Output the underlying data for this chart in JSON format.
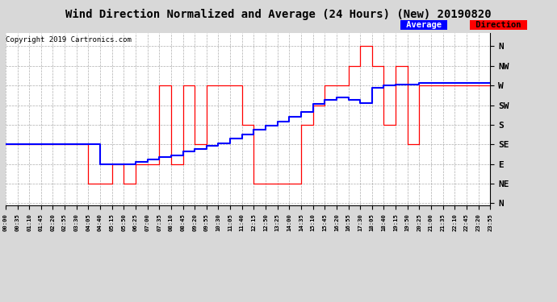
{
  "title": "Wind Direction Normalized and Average (24 Hours) (New) 20190820",
  "copyright": "Copyright 2019 Cartronics.com",
  "legend_label_avg": "Average",
  "legend_label_dir": "Direction",
  "y_labels": [
    "N",
    "NW",
    "W",
    "SW",
    "S",
    "SE",
    "E",
    "NE",
    "N"
  ],
  "y_ticks": [
    360,
    315,
    270,
    225,
    180,
    135,
    90,
    45,
    0
  ],
  "ylim": [
    -5,
    390
  ],
  "background_color": "#d8d8d8",
  "plot_bg_color": "#ffffff",
  "grid_color": "#999999",
  "title_fontsize": 10,
  "time_labels": [
    "00:00",
    "00:35",
    "01:10",
    "01:45",
    "02:20",
    "02:55",
    "03:30",
    "04:05",
    "04:40",
    "05:15",
    "05:50",
    "06:25",
    "07:00",
    "07:35",
    "08:10",
    "08:45",
    "09:20",
    "09:55",
    "10:30",
    "11:05",
    "11:40",
    "12:15",
    "12:50",
    "13:25",
    "14:00",
    "14:35",
    "15:10",
    "15:45",
    "16:20",
    "16:55",
    "17:30",
    "18:05",
    "18:40",
    "19:15",
    "19:50",
    "20:25",
    "21:00",
    "21:35",
    "22:10",
    "22:45",
    "23:20",
    "23:55"
  ],
  "avg_y": [
    135,
    135,
    135,
    135,
    135,
    135,
    135,
    135,
    90,
    90,
    90,
    95,
    100,
    105,
    110,
    118,
    125,
    132,
    138,
    148,
    158,
    168,
    178,
    188,
    198,
    210,
    228,
    238,
    242,
    238,
    230,
    265,
    270,
    272,
    273,
    275,
    275,
    275,
    275,
    275,
    275,
    275
  ],
  "dir_y": [
    135,
    135,
    135,
    135,
    135,
    135,
    135,
    45,
    45,
    90,
    45,
    90,
    90,
    270,
    90,
    270,
    135,
    270,
    270,
    270,
    180,
    45,
    45,
    45,
    45,
    180,
    225,
    270,
    270,
    315,
    360,
    315,
    180,
    315,
    135,
    270,
    270,
    270,
    270,
    270,
    270,
    270
  ]
}
